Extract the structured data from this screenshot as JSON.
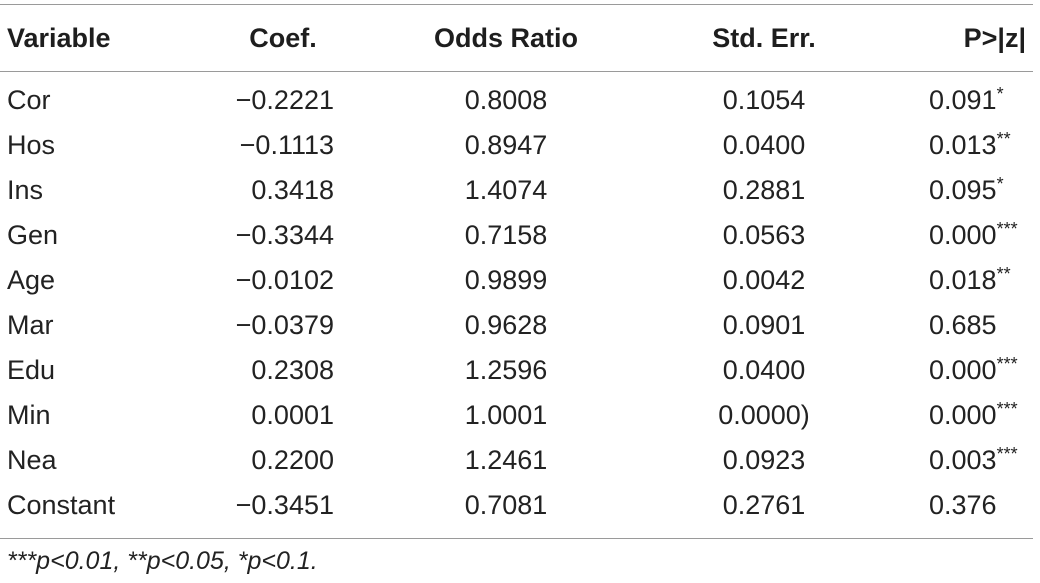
{
  "headers": {
    "variable": "Variable",
    "coef": "Coef.",
    "odds": "Odds Ratio",
    "se": "Std. Err.",
    "p": "P>|z|"
  },
  "rows": [
    {
      "variable": "Cor",
      "coef": "−0.2221",
      "odds": "0.8008",
      "se": "0.1054",
      "p": "0.091",
      "sig": "*"
    },
    {
      "variable": "Hos",
      "coef": "−0.1113",
      "odds": "0.8947",
      "se": "0.0400",
      "p": "0.013",
      "sig": "**"
    },
    {
      "variable": "Ins",
      "coef": "0.3418",
      "odds": "1.4074",
      "se": "0.2881",
      "p": "0.095",
      "sig": "*"
    },
    {
      "variable": "Gen",
      "coef": "−0.3344",
      "odds": "0.7158",
      "se": "0.0563",
      "p": "0.000",
      "sig": "***"
    },
    {
      "variable": "Age",
      "coef": "−0.0102",
      "odds": "0.9899",
      "se": "0.0042",
      "p": "0.018",
      "sig": "**"
    },
    {
      "variable": "Mar",
      "coef": "−0.0379",
      "odds": "0.9628",
      "se": "0.0901",
      "p": "0.685",
      "sig": ""
    },
    {
      "variable": "Edu",
      "coef": "0.2308",
      "odds": "1.2596",
      "se": "0.0400",
      "p": "0.000",
      "sig": "***"
    },
    {
      "variable": "Min",
      "coef": "0.0001",
      "odds": "1.0001",
      "se": "0.0000)",
      "p": "0.000",
      "sig": "***"
    },
    {
      "variable": "Nea",
      "coef": "0.2200",
      "odds": "1.2461",
      "se": "0.0923",
      "p": "0.003",
      "sig": "***"
    },
    {
      "variable": "Constant",
      "coef": "−0.3451",
      "odds": "0.7081",
      "se": "0.2761",
      "p": "0.376",
      "sig": ""
    }
  ],
  "note": "***p<0.01, **p<0.05, *p<0.1."
}
